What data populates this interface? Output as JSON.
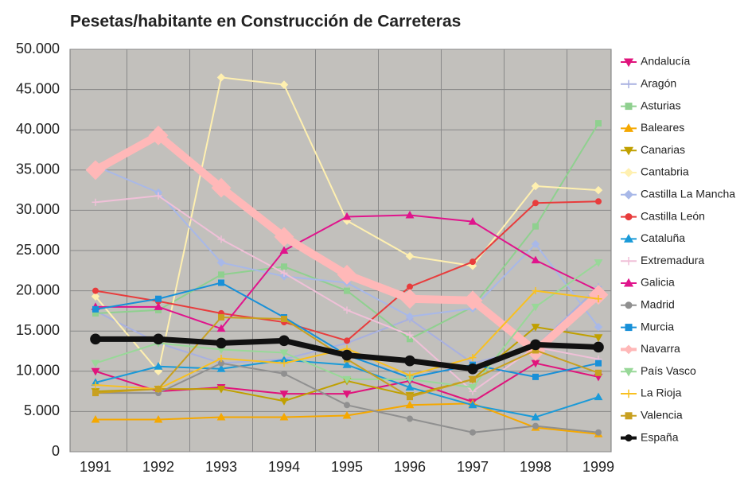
{
  "chart_data": {
    "type": "line",
    "title": "Pesetas/habitante en Construcción de Carreteras",
    "categories": [
      "1991",
      "1992",
      "1993",
      "1994",
      "1995",
      "1996",
      "1997",
      "1998",
      "1999"
    ],
    "ylim": [
      0,
      50000
    ],
    "yticks": [
      0,
      {
        "value": 5000,
        "label": "5.000"
      },
      {
        "value": 10000,
        "label": "10.000"
      },
      {
        "value": 15000,
        "label": "15.000"
      },
      {
        "value": 20000,
        "label": "20.000"
      },
      {
        "value": 25000,
        "label": "25.000"
      },
      {
        "value": 30000,
        "label": "30.000"
      },
      {
        "value": 35000,
        "label": "35.000"
      },
      {
        "value": 40000,
        "label": "40.000"
      },
      {
        "value": 45000,
        "label": "45.000"
      },
      {
        "value": 50000,
        "label": "50.000"
      }
    ],
    "grid": true,
    "legend": "right",
    "series": [
      {
        "name": "Andalucía",
        "color": "#e0147c",
        "marker": "tri-down",
        "line_width": 2,
        "values": [
          10000,
          7500,
          8000,
          7200,
          7200,
          8800,
          6200,
          11000,
          9300
        ]
      },
      {
        "name": "Aragón",
        "color": "#a8b0e0",
        "marker": "plus",
        "line_width": 2,
        "values": [
          17500,
          13500,
          11000,
          11500,
          13500,
          16500,
          11000,
          13000,
          20500
        ]
      },
      {
        "name": "Asturias",
        "color": "#8fd08f",
        "marker": "square",
        "line_width": 2,
        "values": [
          17200,
          17600,
          22000,
          23000,
          20000,
          14000,
          18000,
          28000,
          40800
        ]
      },
      {
        "name": "Baleares",
        "color": "#f5a800",
        "marker": "tri-up",
        "line_width": 2,
        "values": [
          4000,
          4000,
          4300,
          4300,
          4500,
          5800,
          6000,
          3000,
          2200
        ]
      },
      {
        "name": "Canarias",
        "color": "#c0a000",
        "marker": "tri-down",
        "line_width": 2,
        "values": [
          7500,
          7800,
          7800,
          6300,
          8800,
          7000,
          9000,
          15500,
          14200
        ]
      },
      {
        "name": "Cantabria",
        "color": "#fff0b0",
        "marker": "diamond",
        "line_width": 2,
        "values": [
          19300,
          10000,
          46500,
          45600,
          28700,
          24300,
          23100,
          33000,
          32500
        ]
      },
      {
        "name": "Castilla La Mancha",
        "color": "#a8b8e8",
        "marker": "diamond",
        "line_width": 2,
        "values": [
          35500,
          32200,
          23500,
          21800,
          21000,
          16800,
          17800,
          25800,
          15500
        ]
      },
      {
        "name": "Castilla León",
        "color": "#e83c3c",
        "marker": "circle",
        "line_width": 2,
        "values": [
          20000,
          18700,
          17200,
          16100,
          13800,
          20500,
          23600,
          30900,
          31100
        ]
      },
      {
        "name": "Cataluña",
        "color": "#1a9ad8",
        "marker": "tri-up",
        "line_width": 2,
        "values": [
          8600,
          10600,
          10300,
          11400,
          10800,
          8000,
          5800,
          4300,
          6800
        ]
      },
      {
        "name": "Extremadura",
        "color": "#f0c0d8",
        "marker": "plus",
        "line_width": 2,
        "values": [
          31000,
          31800,
          26400,
          22200,
          17600,
          14500,
          7500,
          13000,
          11500
        ]
      },
      {
        "name": "Galicia",
        "color": "#e0148c",
        "marker": "tri-up",
        "line_width": 2,
        "values": [
          18000,
          18000,
          15300,
          25000,
          29200,
          29400,
          28600,
          23800,
          20000
        ]
      },
      {
        "name": "Madrid",
        "color": "#909090",
        "marker": "circle",
        "line_width": 2,
        "values": [
          7300,
          7300,
          11000,
          9700,
          5800,
          4100,
          2400,
          3200,
          2400
        ]
      },
      {
        "name": "Murcia",
        "color": "#1890d8",
        "marker": "square",
        "line_width": 2,
        "values": [
          17700,
          19000,
          21000,
          16700,
          12000,
          9200,
          10800,
          9300,
          11000
        ]
      },
      {
        "name": "Navarra",
        "color": "#ffb8b8",
        "marker": "diamond",
        "line_width": 10,
        "values": [
          35000,
          39300,
          32800,
          26700,
          22000,
          19000,
          18800,
          12500,
          19500
        ]
      },
      {
        "name": "País Vasco",
        "color": "#98d898",
        "marker": "tri-down",
        "line_width": 2,
        "values": [
          11000,
          13500,
          12700,
          12300,
          9000,
          9000,
          8000,
          18000,
          23500
        ]
      },
      {
        "name": "La Rioja",
        "color": "#f8c020",
        "marker": "plus",
        "line_width": 2,
        "values": [
          8300,
          7800,
          11600,
          11000,
          12800,
          9500,
          11700,
          20000,
          19000
        ]
      },
      {
        "name": "Valencia",
        "color": "#c8a020",
        "marker": "square",
        "line_width": 2,
        "values": [
          7300,
          7800,
          16700,
          16500,
          11500,
          6800,
          9000,
          12600,
          9800
        ]
      },
      {
        "name": "España",
        "color": "#111111",
        "marker": "circle",
        "line_width": 7,
        "values": [
          14000,
          14000,
          13500,
          13800,
          12000,
          11300,
          10300,
          13300,
          13000
        ]
      }
    ]
  }
}
